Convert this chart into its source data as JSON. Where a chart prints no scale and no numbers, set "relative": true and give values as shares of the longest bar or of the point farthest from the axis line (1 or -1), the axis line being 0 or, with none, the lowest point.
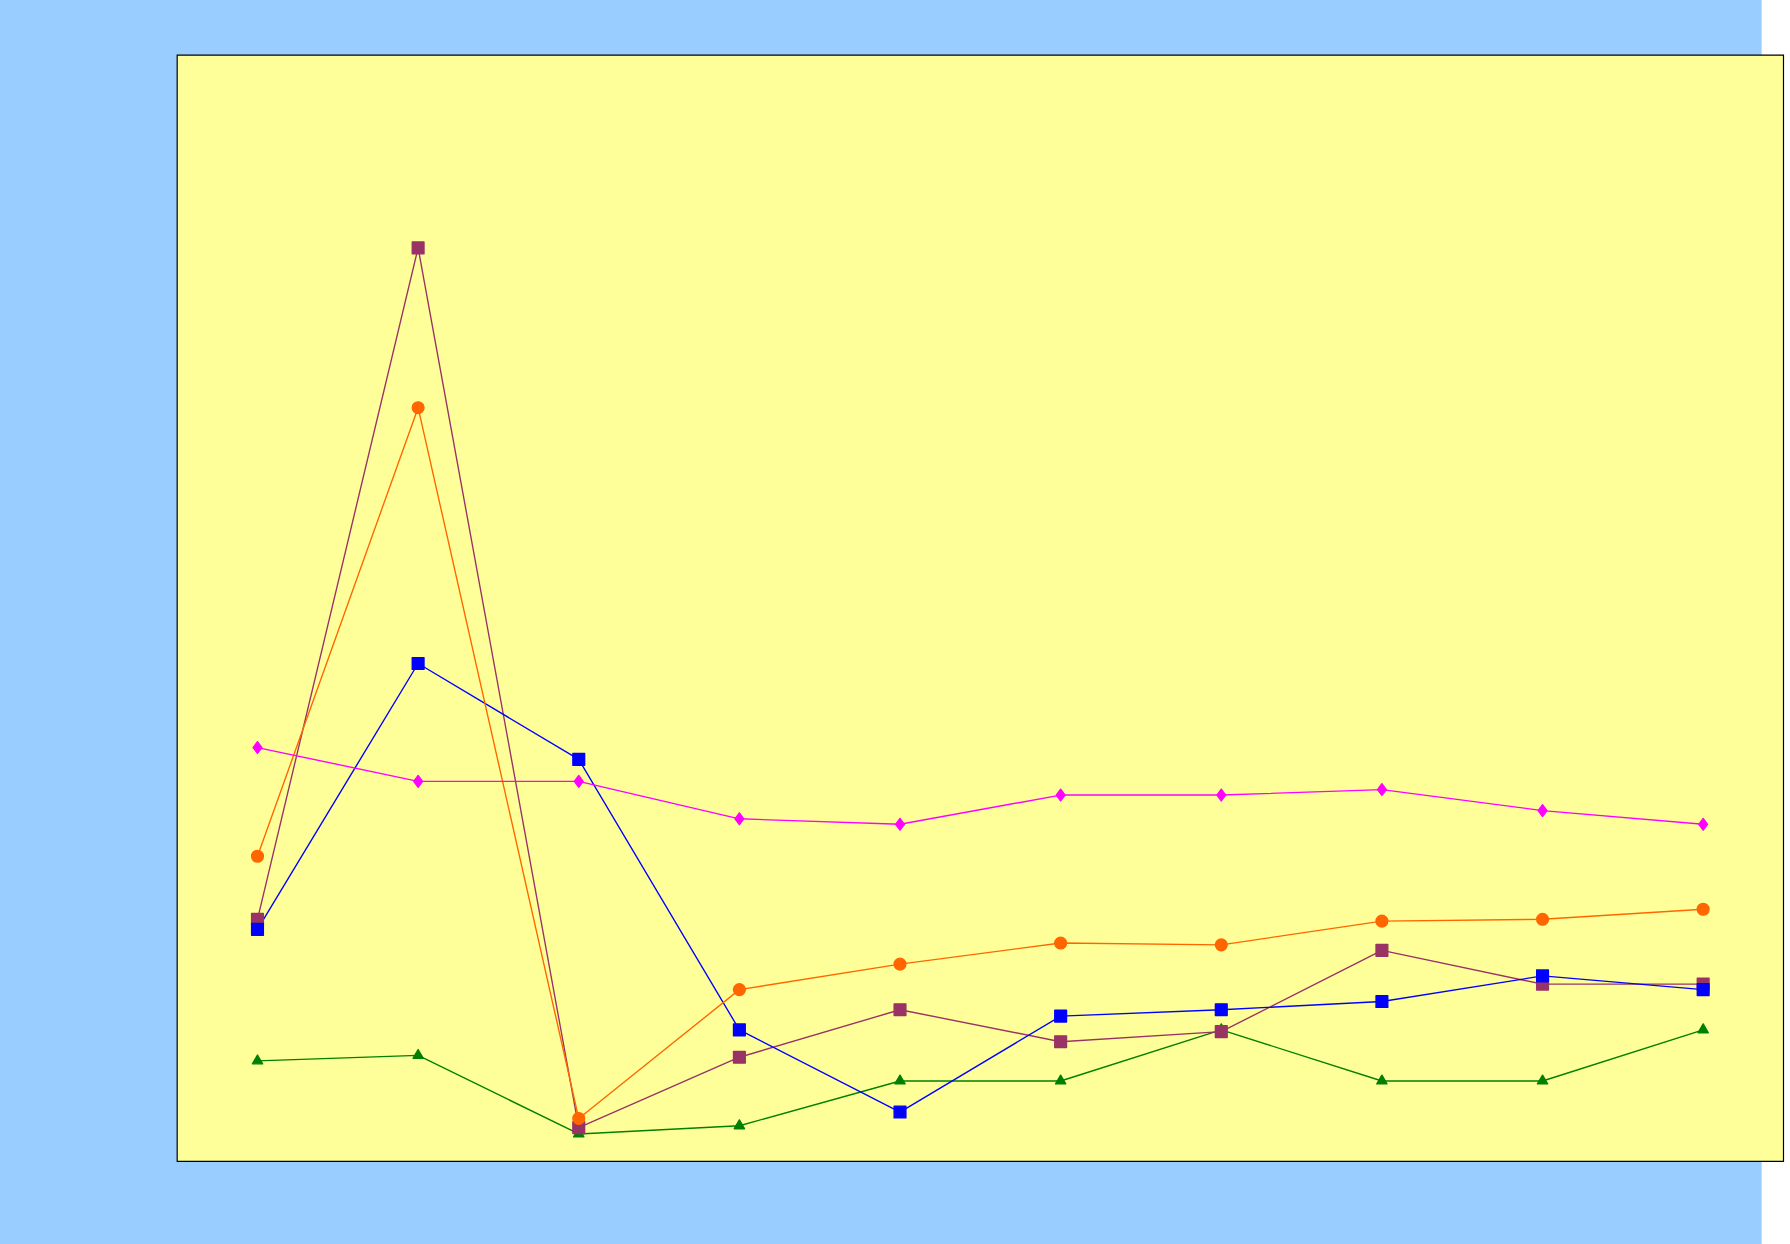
{
  "chart_data": {
    "type": "line",
    "relative": true,
    "categories": [
      null,
      null,
      null,
      null,
      null,
      null,
      null,
      null,
      null,
      null
    ],
    "series": [
      {
        "color": "#ff00ff",
        "marker": "diamond",
        "values": [
          0.453,
          0.416,
          0.416,
          0.375,
          0.369,
          0.401,
          0.401,
          0.407,
          0.384,
          0.369
        ]
      },
      {
        "color": "#ff6600",
        "marker": "circle",
        "values": [
          0.334,
          0.825,
          0.047,
          0.188,
          0.216,
          0.239,
          0.237,
          0.263,
          0.265,
          0.276
        ]
      },
      {
        "color": "#0000ff",
        "marker": "square",
        "values": [
          0.254,
          0.545,
          0.44,
          0.144,
          0.054,
          0.159,
          0.166,
          0.175,
          0.203,
          0.188
        ]
      },
      {
        "color": "#993366",
        "marker": "square",
        "values": [
          0.265,
          1,
          0.037,
          0.114,
          0.166,
          0.131,
          0.142,
          0.231,
          0.194,
          0.194
        ]
      },
      {
        "color": "#008000",
        "marker": "triangle",
        "values": [
          0.11,
          0.116,
          0.03,
          0.039,
          0.088,
          0.088,
          0.144,
          0.088,
          0.088,
          0.144
        ]
      }
    ]
  }
}
